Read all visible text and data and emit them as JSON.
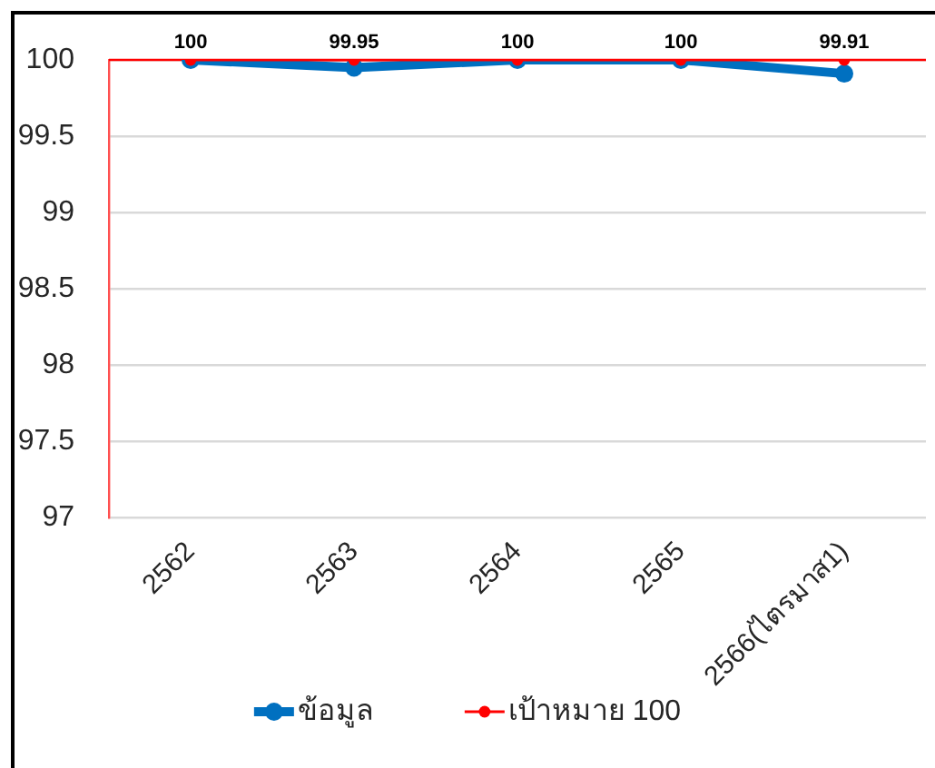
{
  "chart_data": {
    "type": "line",
    "categories": [
      "2562",
      "2563",
      "2564",
      "2565",
      "2566(ไตรมาส1)"
    ],
    "series": [
      {
        "name": "ข้อมูล",
        "color": "#0070c0",
        "values": [
          100,
          99.95,
          100,
          100,
          99.91
        ],
        "value_labels": [
          "100",
          "99.95",
          "100",
          "100",
          "99.91"
        ]
      },
      {
        "name": "เป้าหมาย 100",
        "color": "#ff0000",
        "values": [
          100,
          100,
          100,
          100,
          100
        ]
      }
    ],
    "ylim": [
      97,
      100
    ],
    "yticks": [
      97,
      97.5,
      98,
      98.5,
      99,
      99.5,
      100
    ],
    "grid": "y",
    "legend": "bottom",
    "marker": "circle",
    "line_style": "solid",
    "ref_lines": [
      {
        "axis": "y",
        "value": 100,
        "color": "#ff0000"
      }
    ]
  }
}
